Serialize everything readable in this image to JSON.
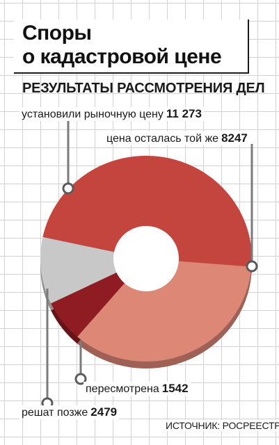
{
  "header": {
    "title_line1": "Споры",
    "title_line2": "о кадастровой цене",
    "subtitle": "РЕЗУЛЬТАТЫ РАССМОТРЕНИЯ ДЕЛ"
  },
  "source": "ИСТОЧНИК: РОСРЕЕСТР",
  "colors": {
    "market": "#c4443e",
    "same": "#dd8776",
    "review": "#8f1c22",
    "later": "#c8c8c8",
    "callout_line": "#7a7a7a"
  },
  "chart_data": {
    "type": "pie",
    "donut": true,
    "title": "РЕЗУЛЬТАТЫ РАССМОТРЕНИЯ ДЕЛ",
    "legend": "callouts",
    "slices": [
      {
        "key": "market",
        "label": "установили рыночную цену",
        "value": 11273,
        "value_label": "11 273"
      },
      {
        "key": "same",
        "label": "цена осталась той же",
        "value": 8247,
        "value_label": "8247"
      },
      {
        "key": "review",
        "label": "пересмотрена",
        "value": 1542,
        "value_label": "1542"
      },
      {
        "key": "later",
        "label": "решат позже",
        "value": 2479,
        "value_label": "2479"
      }
    ]
  }
}
